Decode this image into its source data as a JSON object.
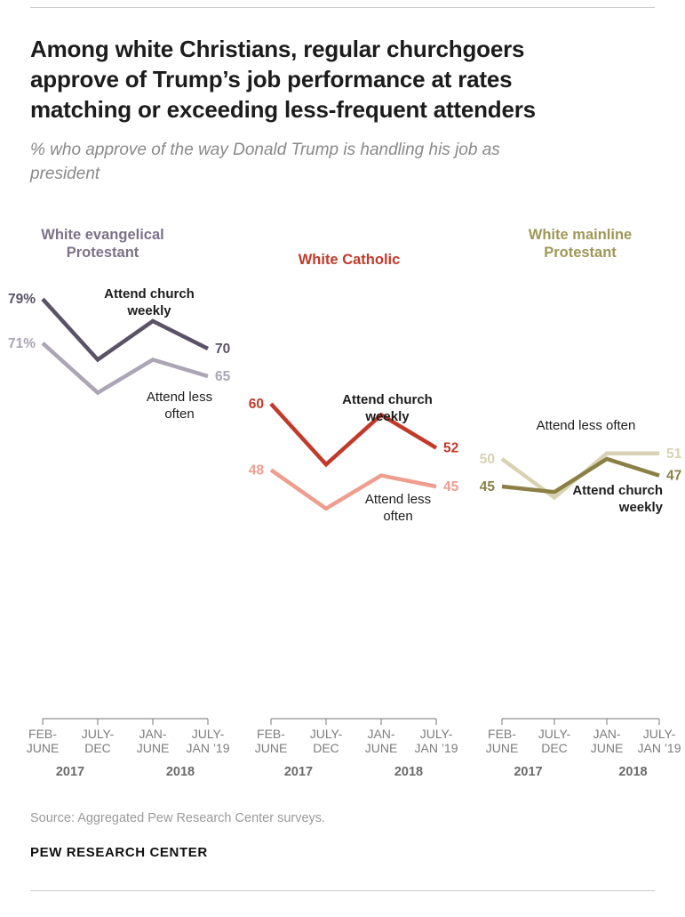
{
  "chart_data": {
    "type": "line",
    "title": "Among white Christians, regular churchgoers approve of Trump’s job performance at rates matching or exceeding less-frequent attenders",
    "subtitle": "% who approve of the way Donald Trump is handling his job as president",
    "ylim": [
      35,
      85
    ],
    "grid": false,
    "x_tick_labels": [
      [
        "FEB-",
        "JUNE"
      ],
      [
        "JULY-",
        "DEC"
      ],
      [
        "JAN-",
        "JUNE"
      ],
      [
        "JULY-",
        "JAN ’19"
      ]
    ],
    "year_labels": [
      "2017",
      "2018"
    ],
    "panels": [
      {
        "title": "White evangelical Protestant",
        "title_color": "#7c7289",
        "series": [
          {
            "name": "Attend church weekly",
            "color": "#5a5266",
            "values": [
              79,
              68,
              75,
              70
            ],
            "start_label": "79%",
            "end_label": "70"
          },
          {
            "name": "Attend less often",
            "color": "#aba5b5",
            "values": [
              71,
              62,
              68,
              65
            ],
            "start_label": "71%",
            "end_label": "65"
          }
        ]
      },
      {
        "title": "White Catholic",
        "title_color": "#c13a2a",
        "series": [
          {
            "name": "Attend church weekly",
            "color": "#c13a2a",
            "values": [
              60,
              49,
              58,
              52
            ],
            "start_label": "60",
            "end_label": "52"
          },
          {
            "name": "Attend less often",
            "color": "#ee9d8e",
            "values": [
              48,
              41,
              47,
              45
            ],
            "start_label": "48",
            "end_label": "45"
          }
        ]
      },
      {
        "title": "White mainline Protestant",
        "title_color": "#a09757",
        "series": [
          {
            "name": "Attend church weekly",
            "color": "#8a8045",
            "values": [
              45,
              44,
              50,
              47
            ],
            "start_label": "45",
            "end_label": "47"
          },
          {
            "name": "Attend less often",
            "color": "#d8d2b2",
            "values": [
              50,
              43,
              51,
              51
            ],
            "start_label": "50",
            "end_label": "51"
          }
        ]
      }
    ]
  },
  "footer": {
    "source": "Source: Aggregated Pew Research Center surveys.",
    "brand": "PEW RESEARCH CENTER"
  }
}
